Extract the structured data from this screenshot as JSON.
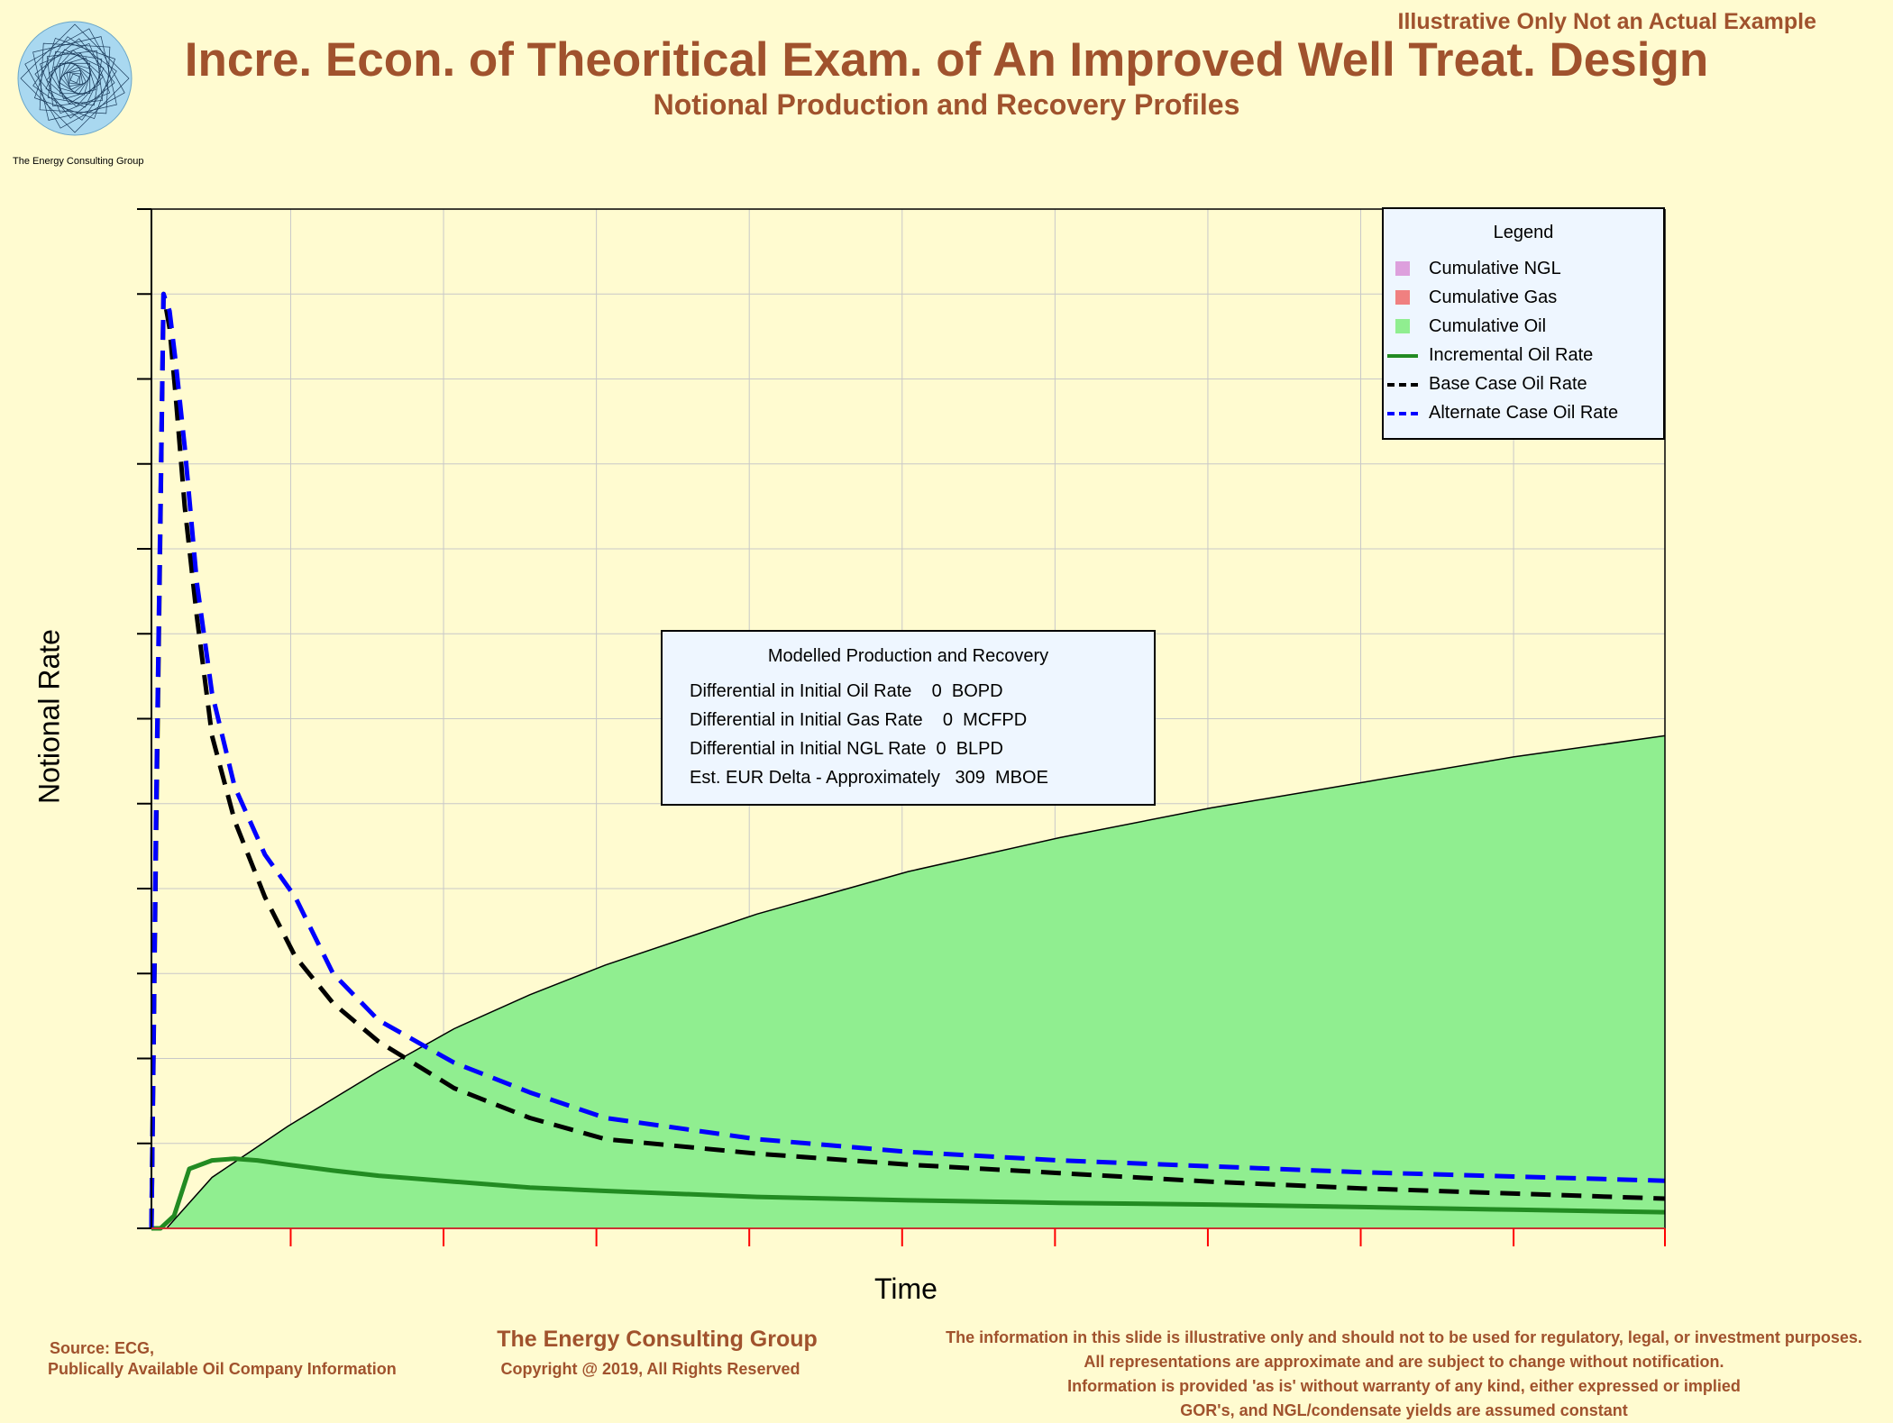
{
  "header": {
    "banner": "Illustrative Only Not an Actual Example",
    "title": "Incre. Econ. of Theoritical Exam. of An Improved Well Treat. Design",
    "subtitle": "Notional Production and Recovery Profiles",
    "logo_text": "The Energy Consulting Group"
  },
  "legend": {
    "title": "Legend",
    "items": [
      {
        "label": "Cumulative NGL",
        "kind": "swatch",
        "color": "#dda0dd"
      },
      {
        "label": "Cumulative Gas",
        "kind": "swatch",
        "color": "#f08080"
      },
      {
        "label": "Cumulative Oil",
        "kind": "swatch",
        "color": "#90ee90"
      },
      {
        "label": "Incremental Oil Rate",
        "kind": "solid",
        "color": "#228b22"
      },
      {
        "label": "Base Case Oil Rate",
        "kind": "dashed",
        "color": "#000000"
      },
      {
        "label": "Alternate Case Oil Rate",
        "kind": "dashed",
        "color": "#0000ff"
      }
    ]
  },
  "info_box": {
    "title": "Modelled Production and Recovery",
    "lines": [
      "Differential in Initial Oil Rate    0  BOPD",
      "Differential in Initial Gas Rate    0  MCFPD",
      "Differential in Initial NGL Rate  0  BLPD",
      "Est. EUR Delta - Approximately   309  MBOE"
    ]
  },
  "footer": {
    "source_line1": "Source: ECG,",
    "source_line2": "Publically Available Oil Company Information",
    "company": "The Energy Consulting Group",
    "copyright": "Copyright @ 2019, All Rights Reserved",
    "disclaimer": [
      "The information in this slide is illustrative only and should not to be used for regulatory, legal, or investment purposes.",
      "All representations are approximate and are subject to change without notification.",
      "Information is provided 'as is' without warranty of any kind, either expressed or implied",
      "GOR's, and NGL/condensate yields are assumed constant"
    ]
  },
  "chart_data": {
    "type": "line",
    "title": "Incre. Econ. of Theoritical Exam. of An Improved Well Treat. Design",
    "subtitle": "Notional Production and Recovery Profiles",
    "xlabel": "Time",
    "ylabel": "Notional Rate",
    "xlim": [
      0,
      100
    ],
    "ylim": [
      0,
      12
    ],
    "x_ticks": [
      0,
      9.2,
      19.3,
      29.4,
      39.5,
      49.6,
      59.7,
      69.8,
      79.9,
      90,
      100
    ],
    "y_ticks": [
      0,
      1,
      2,
      3,
      4,
      5,
      6,
      7,
      8,
      9,
      10,
      11,
      12
    ],
    "grid": true,
    "legend_position": "top-right",
    "series": [
      {
        "name": "Cumulative Oil",
        "style": "area",
        "color": "#90ee90",
        "x": [
          0,
          1,
          4,
          9,
          15,
          20,
          25,
          30,
          40,
          50,
          60,
          70,
          80,
          90,
          100
        ],
        "y": [
          0,
          0,
          0.6,
          1.2,
          1.85,
          2.35,
          2.75,
          3.1,
          3.7,
          4.2,
          4.6,
          4.95,
          5.25,
          5.55,
          5.8
        ]
      },
      {
        "name": "Incremental Oil Rate",
        "style": "solid",
        "color": "#228b22",
        "x": [
          0,
          0.6,
          1.5,
          2.5,
          4,
          5.5,
          7,
          9,
          12,
          15,
          20,
          25,
          30,
          40,
          50,
          60,
          70,
          80,
          90,
          100
        ],
        "y": [
          0,
          0,
          0.15,
          0.7,
          0.8,
          0.82,
          0.8,
          0.75,
          0.68,
          0.62,
          0.55,
          0.48,
          0.44,
          0.37,
          0.33,
          0.3,
          0.28,
          0.25,
          0.22,
          0.19
        ]
      },
      {
        "name": "Base Case Oil Rate",
        "style": "dashed",
        "color": "#000000",
        "x": [
          0,
          0.3,
          0.8,
          1.2,
          1.6,
          2.2,
          3,
          4,
          5.5,
          7.5,
          9.5,
          12,
          15,
          20,
          25,
          30,
          40,
          50,
          60,
          70,
          80,
          90,
          100
        ],
        "y": [
          0,
          4.5,
          11,
          10.6,
          9.8,
          8.5,
          7.2,
          5.8,
          4.8,
          3.9,
          3.2,
          2.65,
          2.2,
          1.65,
          1.3,
          1.05,
          0.88,
          0.75,
          0.65,
          0.55,
          0.47,
          0.41,
          0.35
        ]
      },
      {
        "name": "Alternate Case Oil Rate",
        "style": "dashed",
        "color": "#0000ff",
        "x": [
          0,
          0.3,
          0.8,
          1.2,
          1.6,
          2.2,
          3,
          4,
          5.5,
          7.5,
          9.5,
          12,
          15,
          20,
          25,
          30,
          40,
          50,
          60,
          70,
          80,
          90,
          100
        ],
        "y": [
          0,
          4.8,
          11,
          10.8,
          10.2,
          9.2,
          7.6,
          6.3,
          5.2,
          4.4,
          3.9,
          3.0,
          2.45,
          1.95,
          1.6,
          1.3,
          1.05,
          0.9,
          0.8,
          0.73,
          0.66,
          0.61,
          0.56
        ]
      }
    ],
    "annotation": {
      "title": "Modelled Production and Recovery",
      "est_eur_delta_mboe": 309
    }
  }
}
